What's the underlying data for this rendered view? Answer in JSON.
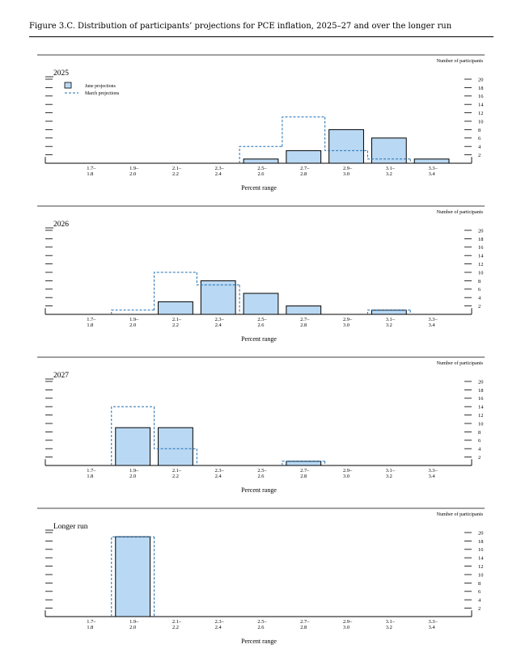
{
  "figure_title": "Figure 3.C. Distribution of participants’ projections for PCE inflation, 2025–27 and over the longer run",
  "legend": {
    "june": "June projections",
    "march": "March projections"
  },
  "colors": {
    "june_fill": "#b9d8f3",
    "march_line": "#1f6fb2",
    "axis": "#000000"
  },
  "chart_data": [
    {
      "type": "bar",
      "title": "2025",
      "right_axis_label": "Number of participants",
      "xlabel": "Percent range",
      "categories": [
        "1.7–1.8",
        "1.9–2.0",
        "2.1–2.2",
        "2.3–2.4",
        "2.5–2.6",
        "2.7–2.8",
        "2.9–3.0",
        "3.1–3.2",
        "3.3–3.4"
      ],
      "yticks": [
        2,
        4,
        6,
        8,
        10,
        12,
        14,
        16,
        18,
        20
      ],
      "ylim": [
        0,
        20
      ],
      "series": [
        {
          "name": "June projections",
          "values": [
            0,
            0,
            0,
            0,
            1,
            3,
            8,
            6,
            1
          ]
        },
        {
          "name": "March projections",
          "values": [
            0,
            0,
            0,
            0,
            4,
            11,
            3,
            1,
            0
          ]
        }
      ],
      "show_legend": true
    },
    {
      "type": "bar",
      "title": "2026",
      "right_axis_label": "Number of participants",
      "xlabel": "Percent range",
      "categories": [
        "1.7–1.8",
        "1.9–2.0",
        "2.1–2.2",
        "2.3–2.4",
        "2.5–2.6",
        "2.7–2.8",
        "2.9–3.0",
        "3.1–3.2",
        "3.3–3.4"
      ],
      "yticks": [
        2,
        4,
        6,
        8,
        10,
        12,
        14,
        16,
        18,
        20
      ],
      "ylim": [
        0,
        20
      ],
      "series": [
        {
          "name": "June projections",
          "values": [
            0,
            0,
            3,
            8,
            5,
            2,
            0,
            1,
            0
          ]
        },
        {
          "name": "March projections",
          "values": [
            0,
            1,
            10,
            7,
            0,
            0,
            0,
            1,
            0
          ]
        }
      ],
      "show_legend": false
    },
    {
      "type": "bar",
      "title": "2027",
      "right_axis_label": "Number of participants",
      "xlabel": "Percent range",
      "categories": [
        "1.7–1.8",
        "1.9–2.0",
        "2.1–2.2",
        "2.3–2.4",
        "2.5–2.6",
        "2.7–2.8",
        "2.9–3.0",
        "3.1–3.2",
        "3.3–3.4"
      ],
      "yticks": [
        2,
        4,
        6,
        8,
        10,
        12,
        14,
        16,
        18,
        20
      ],
      "ylim": [
        0,
        20
      ],
      "series": [
        {
          "name": "June projections",
          "values": [
            0,
            9,
            9,
            0,
            0,
            1,
            0,
            0,
            0
          ]
        },
        {
          "name": "March projections",
          "values": [
            0,
            14,
            4,
            0,
            0,
            1,
            0,
            0,
            0
          ]
        }
      ],
      "show_legend": false
    },
    {
      "type": "bar",
      "title": "Longer run",
      "right_axis_label": "Number of participants",
      "xlabel": "Percent range",
      "categories": [
        "1.7–1.8",
        "1.9–2.0",
        "2.1–2.2",
        "2.3–2.4",
        "2.5–2.6",
        "2.7–2.8",
        "2.9–3.0",
        "3.1–3.2",
        "3.3–3.4"
      ],
      "yticks": [
        2,
        4,
        6,
        8,
        10,
        12,
        14,
        16,
        18,
        20
      ],
      "ylim": [
        0,
        20
      ],
      "series": [
        {
          "name": "June projections",
          "values": [
            0,
            19,
            0,
            0,
            0,
            0,
            0,
            0,
            0
          ]
        },
        {
          "name": "March projections",
          "values": [
            0,
            19,
            0,
            0,
            0,
            0,
            0,
            0,
            0
          ]
        }
      ],
      "show_legend": false
    }
  ]
}
